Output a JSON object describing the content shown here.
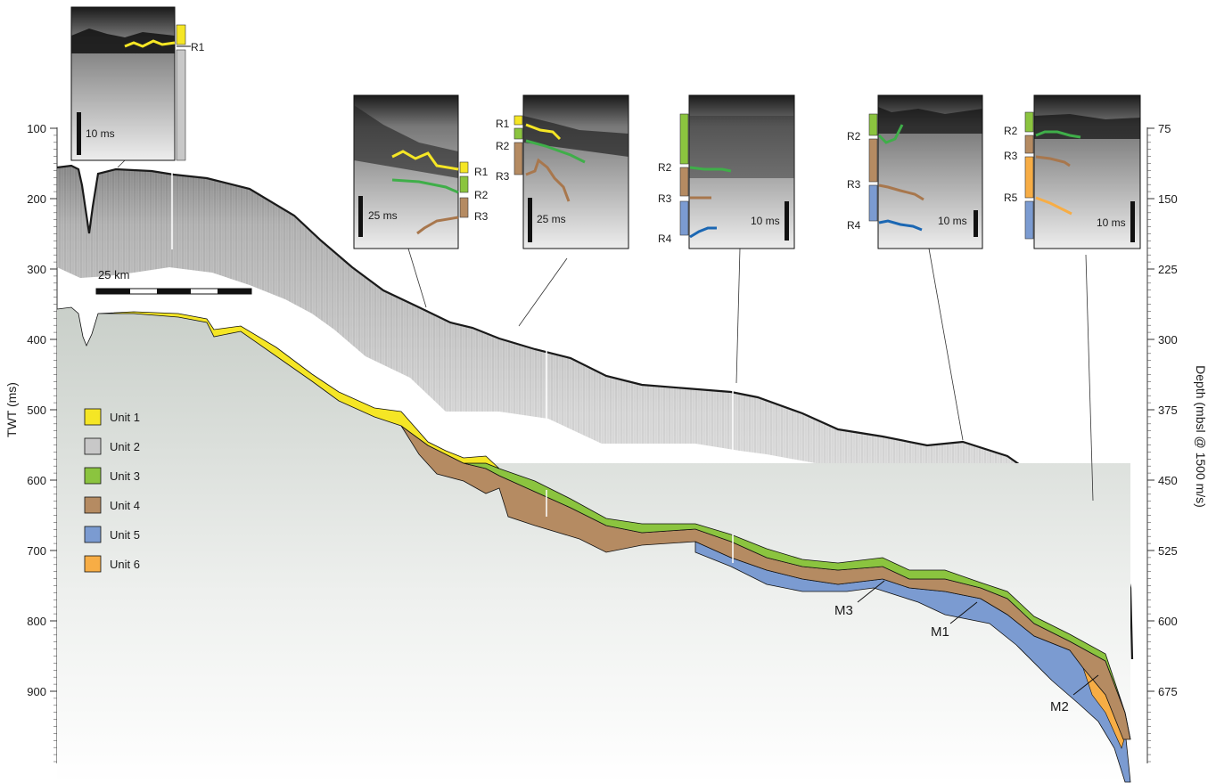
{
  "figure": {
    "left_axis": {
      "title": "TWT (ms)",
      "ticks": [
        "100",
        "200",
        "300",
        "400",
        "500",
        "600",
        "700",
        "800",
        "900"
      ]
    },
    "right_axis": {
      "title": "Depth (mbsl @ 1500 m/s)",
      "ticks": [
        "75",
        "150",
        "225",
        "300",
        "375",
        "450",
        "525",
        "600",
        "675"
      ]
    },
    "scale_bar": {
      "label": "25 km"
    },
    "legend": [
      {
        "label": "Unit 1",
        "color": "#f5e625"
      },
      {
        "label": "Unit 2",
        "color": "#c8c8c8"
      },
      {
        "label": "Unit 3",
        "color": "#8bc43f"
      },
      {
        "label": "Unit 4",
        "color": "#b58b62"
      },
      {
        "label": "Unit 5",
        "color": "#7b9bd1"
      },
      {
        "label": "Unit 6",
        "color": "#f7ad45"
      }
    ],
    "reflector_colors": {
      "R1": "#f5e625",
      "R2": "#3fae49",
      "R3": "#a8774d",
      "R4": "#1b67b3",
      "R5": "#f7ad45"
    },
    "insets": [
      {
        "id": "inset-1",
        "scale_label": "10 ms",
        "reflectors": [
          "R1"
        ]
      },
      {
        "id": "inset-2",
        "scale_label": "25 ms",
        "reflectors": [
          "R1",
          "R2",
          "R3"
        ]
      },
      {
        "id": "inset-3",
        "scale_label": "25 ms",
        "reflectors": [
          "R1",
          "R2",
          "R3"
        ]
      },
      {
        "id": "inset-4",
        "scale_label": "10 ms",
        "reflectors": [
          "R2",
          "R3",
          "R4"
        ]
      },
      {
        "id": "inset-5",
        "scale_label": "10 ms",
        "reflectors": [
          "R2",
          "R3",
          "R4"
        ]
      },
      {
        "id": "inset-6",
        "scale_label": "10 ms",
        "reflectors": [
          "R2",
          "R3",
          "R5"
        ]
      }
    ],
    "callouts": [
      "M3",
      "M1",
      "M2"
    ]
  }
}
